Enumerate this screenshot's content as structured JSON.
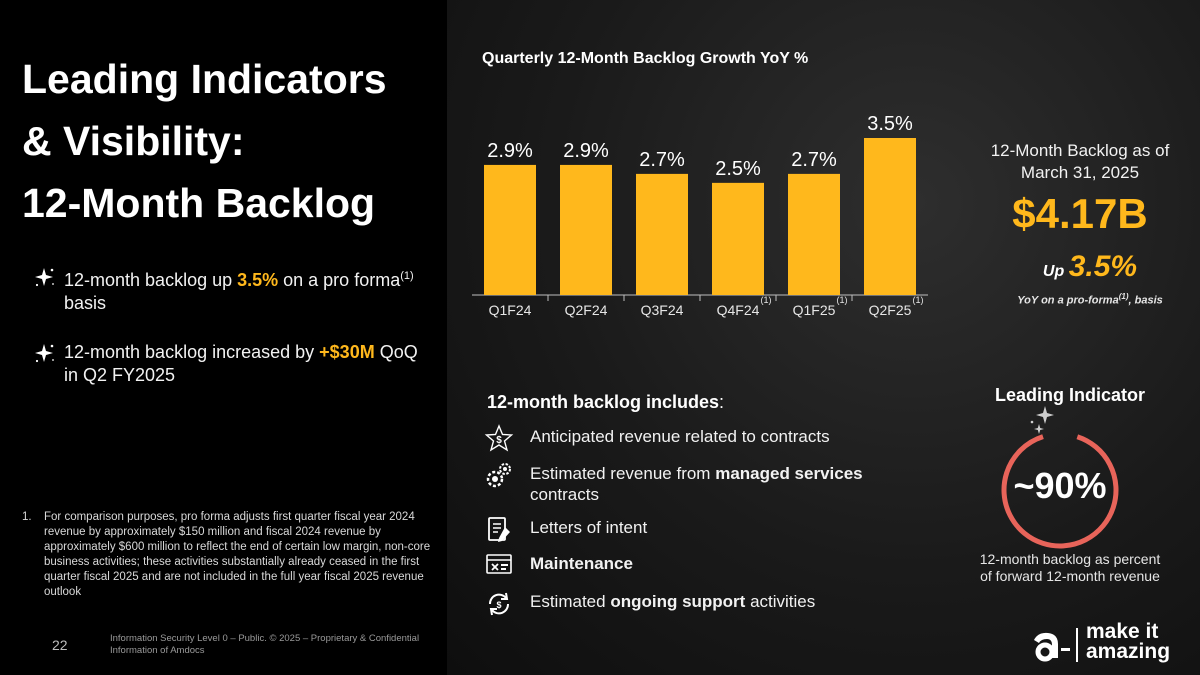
{
  "slide": {
    "title_lines": [
      "Leading Indicators",
      "& Visibility:",
      "12-Month Backlog"
    ],
    "bullets": [
      {
        "pre": "12-month backlog up ",
        "hl": "3.5%",
        "post": " on a pro forma",
        "sup": "(1)",
        "post2": " basis"
      },
      {
        "pre": "12-month backlog increased by ",
        "hl": "+$30M",
        "post": " QoQ in Q2 FY2025",
        "sup": "",
        "post2": ""
      }
    ],
    "footnote_num": "1.",
    "footnote": "For comparison purposes, pro forma adjusts first quarter fiscal year 2024 revenue by approximately $150 million and fiscal 2024 revenue by approximately $600 million to reflect the end of certain low margin, non-core business activities; these activities substantially already ceased in the first quarter fiscal 2025 and are not included in the full year fiscal 2025 revenue outlook",
    "page_number": "22",
    "confidential": "Information Security Level 0 – Public. © 2025 – Proprietary & Confidential Information of Amdocs"
  },
  "chart_data": {
    "type": "bar",
    "title": "Quarterly 12-Month Backlog Growth YoY %",
    "categories": [
      "Q1F24",
      "Q2F24",
      "Q3F24",
      "Q4F24",
      "Q1F25",
      "Q2F25"
    ],
    "values": [
      2.9,
      2.9,
      2.7,
      2.5,
      2.7,
      3.5
    ],
    "data_labels": [
      "2.9%",
      "2.9%",
      "2.7%",
      "2.5%",
      "2.7%",
      "3.5%"
    ],
    "footnote_markers": [
      "",
      "",
      "",
      "(1)",
      "(1)",
      "(1)"
    ],
    "ylim": [
      0,
      3.5
    ],
    "bar_color": "#FFB81C",
    "xlabel": "",
    "ylabel": "",
    "grid": false,
    "legend": "none"
  },
  "summary": {
    "label": "12-Month Backlog as of March 31, 2025",
    "value": "$4.17B",
    "up_word": "Up",
    "up_value": "3.5%",
    "yoy_pre": "YoY on a pro-forma",
    "yoy_sup": "(1)",
    "yoy_post": ", basis"
  },
  "includes": {
    "title": "12-month backlog includes",
    "title_suffix": ":",
    "items": [
      {
        "icon": "dollar-star-icon",
        "pre": "Anticipated revenue related to contracts",
        "bold": "",
        "post": ""
      },
      {
        "icon": "gears-icon",
        "pre": "Estimated revenue from ",
        "bold": "managed services",
        "post": " contracts"
      },
      {
        "icon": "document-pen-icon",
        "pre": "Letters of intent",
        "bold": "",
        "post": ""
      },
      {
        "icon": "maintenance-icon",
        "pre": "",
        "bold": "Maintenance",
        "post": ""
      },
      {
        "icon": "support-cycle-icon",
        "pre": "Estimated ",
        "bold": "ongoing support",
        "post": " activities"
      }
    ]
  },
  "leading_indicator": {
    "title": "Leading Indicator",
    "value": "~90%",
    "ring_fraction": 0.9,
    "caption": "12-month backlog as percent of forward 12-month revenue",
    "ring_color": "#E8645A"
  },
  "logo": {
    "line1": "make it",
    "line2": "amazing"
  },
  "colors": {
    "accent": "#FFB81C",
    "ring": "#E8645A"
  }
}
